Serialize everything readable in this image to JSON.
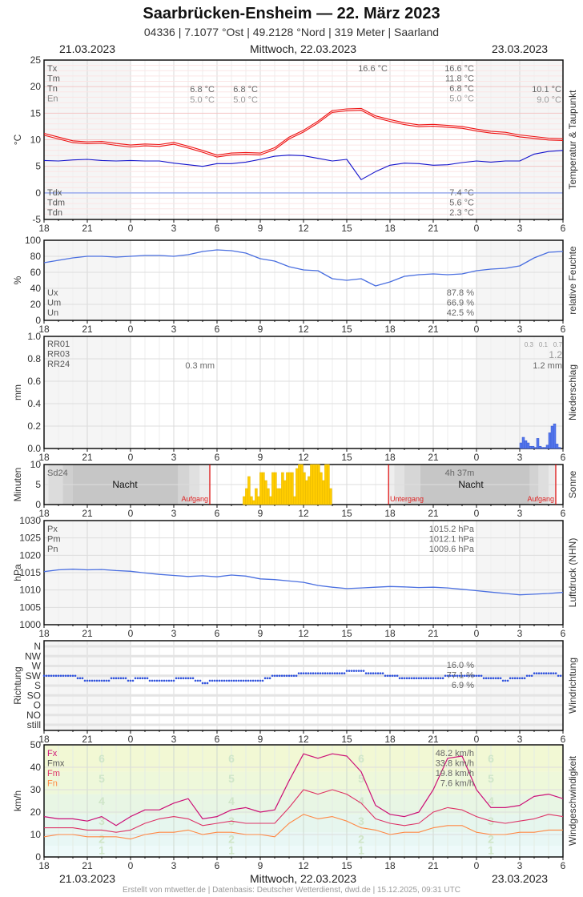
{
  "header": {
    "title": "Saarbrücken-Ensheim  —  22. März 2023",
    "subtitle": "04336  |  7.1077 °Ost  |  49.2128 °Nord  |  319 Meter  |  Saarland",
    "date_left": "21.03.2023",
    "date_center": "Mittwoch, 22.03.2023",
    "date_right": "23.03.2023"
  },
  "footer": {
    "text": "Erstellt von mtwetter.de | Datenbasis: Deutscher Wetterdienst, dwd.de | 15.12.2025, 09:31 UTC"
  },
  "x_axis": {
    "tick_labels": [
      "18",
      "21",
      "0",
      "3",
      "6",
      "9",
      "12",
      "15",
      "18",
      "21",
      "0",
      "3",
      "6"
    ],
    "hours_span": 36
  },
  "colors": {
    "temperature": "#ee1111",
    "dewpoint": "#1111cc",
    "humidity": "#4a6fe0",
    "precip": "#5577ee",
    "sunshine": "#ffcc00",
    "pressure": "#4a6fe0",
    "wind_dir": "#3355dd",
    "fx": "#cc1177",
    "fm": "#dd3366",
    "fn": "#ff8844",
    "sun_event": "#dd0000"
  },
  "chart_data": [
    {
      "type": "line",
      "title": "Temperatur & Taupunkt",
      "ylabel": "°C",
      "ylim": [
        -5,
        25
      ],
      "yticks": [
        "25",
        "20",
        "15",
        "10",
        "5",
        "0",
        "-5"
      ],
      "legend": [
        "Tx",
        "Tm",
        "Tn",
        "En",
        "Tdx",
        "Tdm",
        "Tdn"
      ],
      "annotations": {
        "day1": [
          "6.8 °C",
          "5.0 °C"
        ],
        "day2_left": [
          "6.8 °C",
          "5.0 °C"
        ],
        "peak": "16.6 °C",
        "stats": [
          "16.6 °C",
          "11.8 °C",
          "6.8 °C",
          "5.0 °C"
        ],
        "day3": [
          "10.1 °C",
          "9.0 °C"
        ],
        "dew_stats": [
          "7.4 °C",
          "5.6 °C",
          "2.3 °C"
        ]
      },
      "series": [
        {
          "name": "Temperatur",
          "x": [
            0,
            1,
            2,
            3,
            4,
            5,
            6,
            7,
            8,
            9,
            10,
            11,
            12,
            13,
            14,
            15,
            16,
            17,
            18,
            19,
            20,
            21,
            22,
            23,
            24,
            25,
            26,
            27,
            28,
            29,
            30,
            31,
            32,
            33,
            34,
            35,
            36
          ],
          "values": [
            11.2,
            10.5,
            9.8,
            9.6,
            9.7,
            9.3,
            9.0,
            9.2,
            9.1,
            9.5,
            8.8,
            8.0,
            7.1,
            7.5,
            7.6,
            7.5,
            8.5,
            10.5,
            11.8,
            13.5,
            15.5,
            15.8,
            15.9,
            14.5,
            13.8,
            13.2,
            12.8,
            12.9,
            12.7,
            12.5,
            12.0,
            11.6,
            11.4,
            10.9,
            10.6,
            10.3,
            10.2
          ]
        },
        {
          "name": "Taupunkt",
          "x": [
            0,
            1,
            2,
            3,
            4,
            5,
            6,
            7,
            8,
            9,
            10,
            11,
            12,
            13,
            14,
            15,
            16,
            17,
            18,
            19,
            20,
            21,
            22,
            23,
            24,
            25,
            26,
            27,
            28,
            29,
            30,
            31,
            32,
            33,
            34,
            35,
            36
          ],
          "values": [
            6.1,
            6.0,
            6.2,
            6.3,
            6.1,
            6.0,
            6.1,
            6.0,
            6.0,
            5.6,
            5.3,
            5.0,
            5.5,
            5.5,
            5.8,
            6.3,
            6.9,
            7.1,
            7.0,
            6.5,
            6.0,
            6.3,
            2.5,
            4.0,
            5.2,
            5.6,
            5.5,
            5.2,
            5.3,
            5.7,
            6.0,
            5.8,
            6.0,
            6.0,
            7.3,
            7.8,
            8.0
          ]
        }
      ]
    },
    {
      "type": "line",
      "title": "relative Feuchte",
      "ylabel": "%",
      "ylim": [
        0,
        100
      ],
      "yticks": [
        "100",
        "80",
        "60",
        "40",
        "20",
        "0"
      ],
      "legend": [
        "Ux",
        "Um",
        "Un"
      ],
      "annotations": {
        "stats": [
          "87.8 %",
          "66.9 %",
          "42.5 %"
        ]
      },
      "series": [
        {
          "name": "Feuchte",
          "x": [
            0,
            1,
            2,
            3,
            4,
            5,
            6,
            7,
            8,
            9,
            10,
            11,
            12,
            13,
            14,
            15,
            16,
            17,
            18,
            19,
            20,
            21,
            22,
            23,
            24,
            25,
            26,
            27,
            28,
            29,
            30,
            31,
            32,
            33,
            34,
            35,
            36
          ],
          "values": [
            72,
            75,
            78,
            80,
            80,
            79,
            80,
            81,
            81,
            80,
            82,
            86,
            88,
            87,
            84,
            77,
            74,
            67,
            63,
            62,
            52,
            50,
            52,
            43,
            48,
            55,
            57,
            58,
            57,
            58,
            62,
            64,
            65,
            68,
            78,
            85,
            86
          ]
        }
      ]
    },
    {
      "type": "bar",
      "title": "Niederschlag",
      "ylabel": "mm",
      "ylim": [
        0,
        1.0
      ],
      "yticks": [
        "1.0",
        "0.8",
        "0.6",
        "0.4",
        "0.2",
        "0.0"
      ],
      "legend": [
        "RR01",
        "RR03",
        "RR24"
      ],
      "annotations": {
        "day_sum": "0.3 mm",
        "rr03": [
          "0.3",
          "0.1",
          "0.7"
        ],
        "rr24_val": "1.2",
        "total": "1.2 mm"
      },
      "bars_start_hour": 33.0,
      "bar_width_hours": 0.1667,
      "values": [
        0.05,
        0.1,
        0.07,
        0.05,
        0.02,
        0.02,
        0.01,
        0.09,
        0.02,
        0.01,
        0.01,
        0.03,
        0.14,
        0.2,
        0.22,
        0.04,
        0.01
      ]
    },
    {
      "type": "bar",
      "title": "Sonne",
      "ylabel": "Minuten",
      "ylim": [
        0,
        10
      ],
      "yticks": [
        "10",
        "5",
        "0"
      ],
      "legend": [
        "Sd24"
      ],
      "annotations": {
        "night_label": "Nacht",
        "sunrise": "Aufgang",
        "sunset": "Untergang",
        "total": "4h 37m"
      },
      "sunrise_hours": [
        11.5,
        35.5
      ],
      "sunset_hours": [
        23.9
      ],
      "bars_start_hour": 13.8,
      "bar_width_hours": 0.1667,
      "values": [
        2,
        4,
        7,
        2,
        1,
        4,
        2,
        8,
        8,
        6,
        4,
        2,
        8,
        8,
        4,
        4,
        8,
        6,
        8,
        8,
        8,
        2,
        9,
        10,
        10,
        8,
        6,
        7,
        10,
        10,
        10,
        10,
        8,
        6,
        10,
        10,
        4
      ]
    },
    {
      "type": "line",
      "title": "Luftdruck (NHN)",
      "ylabel": "hPa",
      "ylim": [
        1000,
        1030
      ],
      "yticks": [
        "1030",
        "1025",
        "1020",
        "1015",
        "1010",
        "1005",
        "1000"
      ],
      "legend": [
        "Px",
        "Pm",
        "Pn"
      ],
      "annotations": {
        "stats": [
          "1015.2 hPa",
          "1012.1 hPa",
          "1009.6 hPa"
        ]
      },
      "series": [
        {
          "name": "Luftdruck",
          "x": [
            0,
            1,
            2,
            3,
            4,
            5,
            6,
            7,
            8,
            9,
            10,
            11,
            12,
            13,
            14,
            15,
            16,
            17,
            18,
            19,
            20,
            21,
            22,
            23,
            24,
            25,
            26,
            27,
            28,
            29,
            30,
            31,
            32,
            33,
            34,
            35,
            36
          ],
          "values": [
            1015.3,
            1015.8,
            1016.0,
            1015.8,
            1015.9,
            1015.6,
            1015.4,
            1014.9,
            1014.5,
            1014.2,
            1013.9,
            1014.1,
            1013.8,
            1014.3,
            1014.0,
            1013.2,
            1013.0,
            1012.6,
            1012.2,
            1011.3,
            1010.8,
            1010.4,
            1010.6,
            1010.8,
            1011.0,
            1010.9,
            1010.7,
            1010.8,
            1010.6,
            1010.2,
            1009.8,
            1009.4,
            1009.0,
            1008.6,
            1008.8,
            1009.0,
            1009.3
          ]
        }
      ]
    },
    {
      "type": "scatter",
      "title": "Windrichtung",
      "ylabel": "Richtung",
      "ycategories": [
        "N",
        "NW",
        "W",
        "SW",
        "S",
        "SO",
        "O",
        "NO",
        "still"
      ],
      "annotations": {
        "stats": [
          "16.0 %",
          "77.1 %",
          "6.9 %"
        ]
      },
      "series": [
        {
          "name": "Richtung",
          "x": [
            0,
            1,
            2,
            3,
            4,
            5,
            6,
            7,
            8,
            9,
            10,
            11,
            12,
            13,
            14,
            15,
            16,
            17,
            18,
            19,
            20,
            21,
            22,
            23,
            24,
            25,
            26,
            27,
            28,
            29,
            30,
            31,
            32,
            33,
            34,
            35,
            36
          ],
          "values": [
            3.0,
            3.0,
            3.0,
            3.5,
            3.5,
            3.3,
            3.4,
            3.3,
            3.6,
            3.4,
            3.2,
            3.7,
            3.5,
            3.5,
            3.5,
            3.5,
            3.0,
            3.0,
            2.8,
            2.7,
            2.8,
            2.6,
            2.6,
            2.7,
            3.0,
            3.2,
            3.3,
            3.2,
            3.1,
            3.0,
            3.0,
            3.3,
            3.4,
            3.3,
            2.8,
            2.7,
            3.0
          ]
        }
      ]
    },
    {
      "type": "line",
      "title": "Windgeschwindigkeit",
      "ylabel": "km/h",
      "ylim": [
        0,
        50
      ],
      "yticks": [
        "50",
        "40",
        "30",
        "20",
        "10",
        "0"
      ],
      "legend": [
        "Fx",
        "Fmx",
        "Fm",
        "Fn"
      ],
      "beaufort_labels": [
        "6",
        "5",
        "4",
        "3",
        "2",
        "1"
      ],
      "annotations": {
        "stats": [
          "48.2 km/h",
          "33.8 km/h",
          "19.8 km/h",
          "7.6 km/h"
        ]
      },
      "series": [
        {
          "name": "Fx",
          "x": [
            0,
            1,
            2,
            3,
            4,
            5,
            6,
            7,
            8,
            9,
            10,
            11,
            12,
            13,
            14,
            15,
            16,
            17,
            18,
            19,
            20,
            21,
            22,
            23,
            24,
            25,
            26,
            27,
            28,
            29,
            30,
            31,
            32,
            33,
            34,
            35,
            36
          ],
          "values": [
            18,
            17,
            17,
            16,
            18,
            14,
            18,
            21,
            21,
            24,
            26,
            17,
            18,
            21,
            22,
            20,
            21,
            34,
            46,
            44,
            46,
            45,
            38,
            23,
            19,
            18,
            20,
            30,
            44,
            45,
            30,
            22,
            22,
            23,
            27,
            28,
            26
          ]
        },
        {
          "name": "Fm",
          "x": [
            0,
            1,
            2,
            3,
            4,
            5,
            6,
            7,
            8,
            9,
            10,
            11,
            12,
            13,
            14,
            15,
            16,
            17,
            18,
            19,
            20,
            21,
            22,
            23,
            24,
            25,
            26,
            27,
            28,
            29,
            30,
            31,
            32,
            33,
            34,
            35,
            36
          ],
          "values": [
            13,
            13,
            13,
            12,
            12,
            11,
            12,
            15,
            17,
            18,
            17,
            14,
            15,
            16,
            15,
            15,
            15,
            22,
            30,
            28,
            30,
            28,
            24,
            17,
            15,
            14,
            15,
            20,
            22,
            21,
            18,
            16,
            15,
            16,
            17,
            19,
            18
          ]
        },
        {
          "name": "Fn",
          "x": [
            0,
            1,
            2,
            3,
            4,
            5,
            6,
            7,
            8,
            9,
            10,
            11,
            12,
            13,
            14,
            15,
            16,
            17,
            18,
            19,
            20,
            21,
            22,
            23,
            24,
            25,
            26,
            27,
            28,
            29,
            30,
            31,
            32,
            33,
            34,
            35,
            36
          ],
          "values": [
            9,
            10,
            10,
            9,
            9,
            9,
            8,
            10,
            11,
            11,
            12,
            10,
            11,
            11,
            10,
            10,
            9,
            15,
            19,
            17,
            18,
            16,
            13,
            12,
            10,
            11,
            11,
            13,
            14,
            14,
            11,
            10,
            10,
            11,
            11,
            12,
            12
          ]
        }
      ]
    }
  ]
}
